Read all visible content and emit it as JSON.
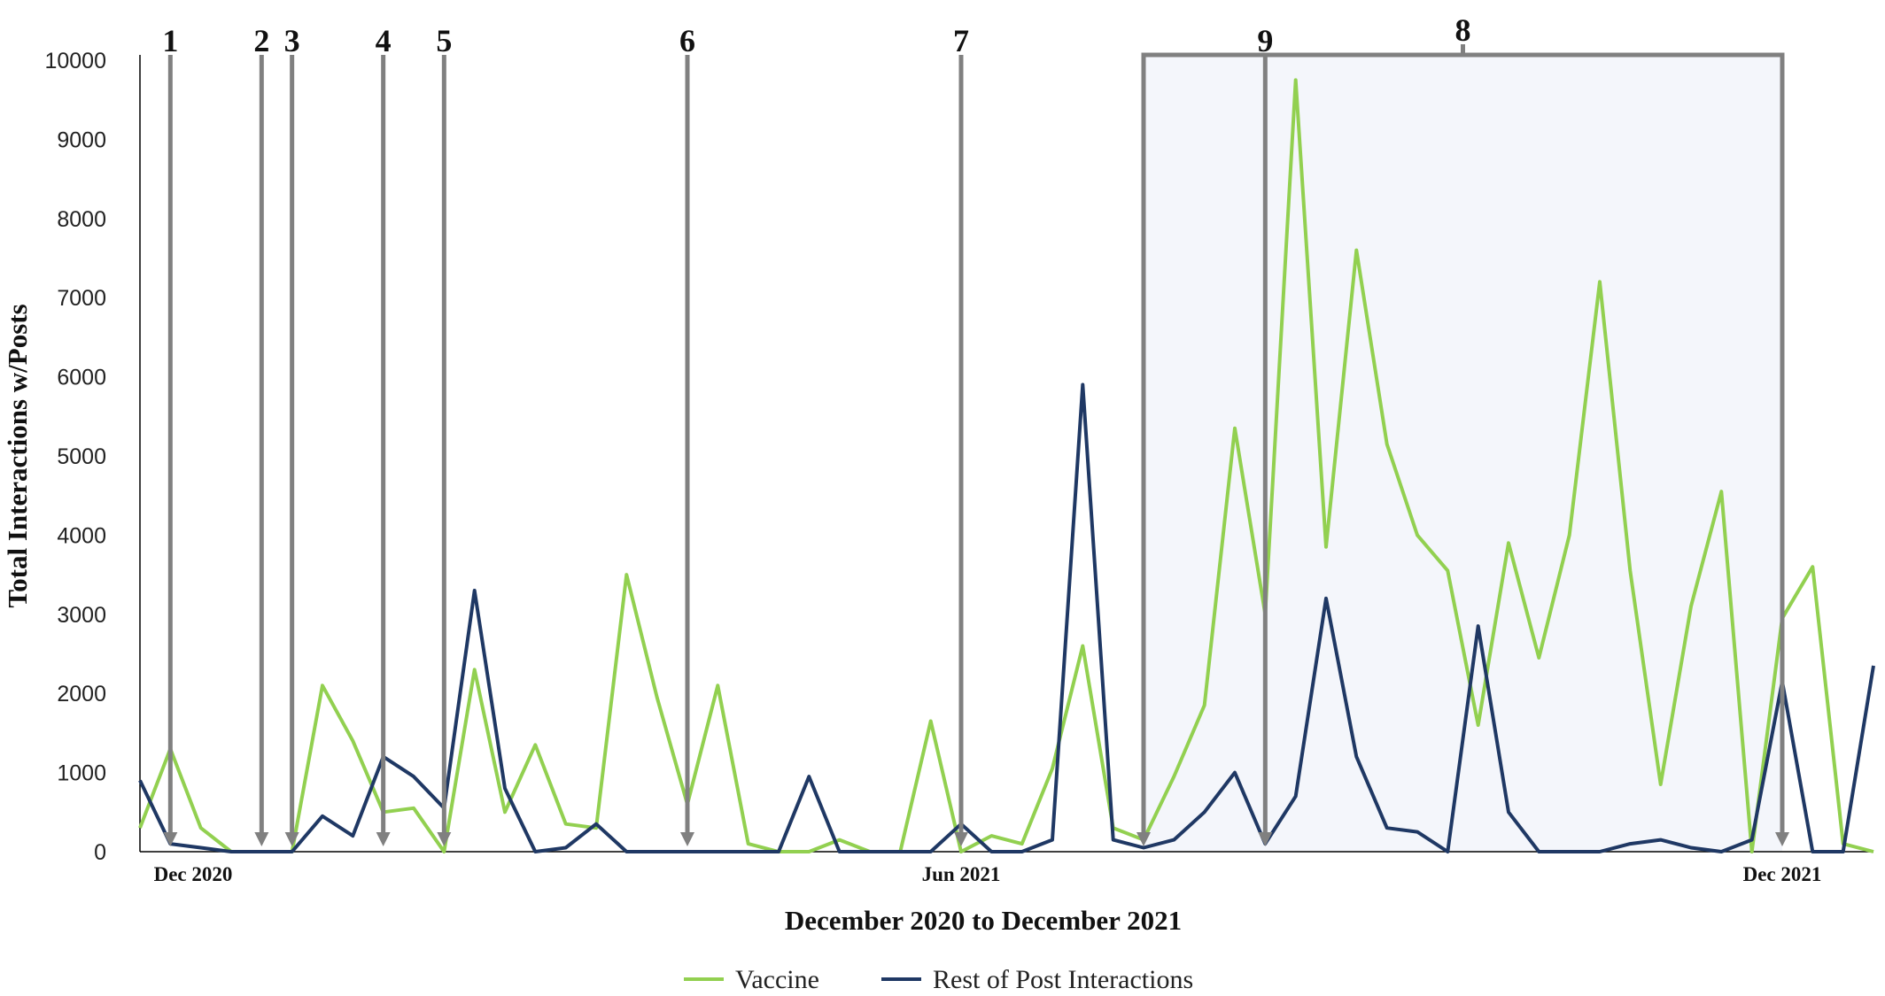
{
  "chart_data": {
    "type": "line",
    "title": "",
    "xlabel": "December 2020 to December 2021",
    "ylabel": "Total Interactions w/Posts",
    "ylim": [
      0,
      10000
    ],
    "yticks": [
      0,
      1000,
      2000,
      3000,
      4000,
      5000,
      6000,
      7000,
      8000,
      9000,
      10000
    ],
    "x_tick_labels": [
      {
        "label": "Dec 2020",
        "index": 1
      },
      {
        "label": "Jun 2021",
        "index": 27
      },
      {
        "label": "Dec 2021",
        "index": 54
      }
    ],
    "grid": false,
    "legend": "bottom",
    "colors": {
      "vaccine": "#92d050",
      "rest": "#1f3864",
      "shade": "#f4f6fb",
      "marker": "#808080"
    },
    "series": [
      {
        "name": "Vaccine",
        "color": "#92d050",
        "values": [
          300,
          1300,
          300,
          0,
          0,
          0,
          2100,
          1400,
          500,
          550,
          0,
          2300,
          500,
          1350,
          350,
          300,
          3500,
          1950,
          600,
          2100,
          100,
          0,
          0,
          150,
          0,
          0,
          1650,
          0,
          200,
          100,
          1050,
          2600,
          300,
          150,
          950,
          1850,
          5350,
          3000,
          9750,
          3850,
          7600,
          5150,
          4000,
          3550,
          1600,
          3900,
          2450,
          4000,
          7200,
          3550,
          850,
          3100,
          4550,
          0,
          2950,
          3600,
          100,
          0
        ]
      },
      {
        "name": "Rest of Post Interactions",
        "color": "#1f3864",
        "values": [
          900,
          100,
          50,
          0,
          0,
          0,
          450,
          200,
          1200,
          950,
          550,
          3300,
          800,
          0,
          50,
          350,
          0,
          0,
          0,
          0,
          0,
          0,
          950,
          0,
          0,
          0,
          0,
          350,
          0,
          0,
          150,
          5900,
          150,
          50,
          150,
          500,
          1000,
          100,
          700,
          3200,
          1200,
          300,
          250,
          0,
          2850,
          500,
          0,
          0,
          0,
          100,
          150,
          50,
          0,
          150,
          2150,
          0,
          0,
          2350
        ]
      }
    ],
    "annotations": [
      {
        "label": "1",
        "index": 1
      },
      {
        "label": "2",
        "index": 4
      },
      {
        "label": "3",
        "index": 5
      },
      {
        "label": "4",
        "index": 8
      },
      {
        "label": "5",
        "index": 10
      },
      {
        "label": "6",
        "index": 18
      },
      {
        "label": "7",
        "index": 27
      },
      {
        "label": "9",
        "index": 37
      },
      {
        "label": "8",
        "range": [
          33,
          54
        ],
        "shaded": true
      }
    ]
  }
}
